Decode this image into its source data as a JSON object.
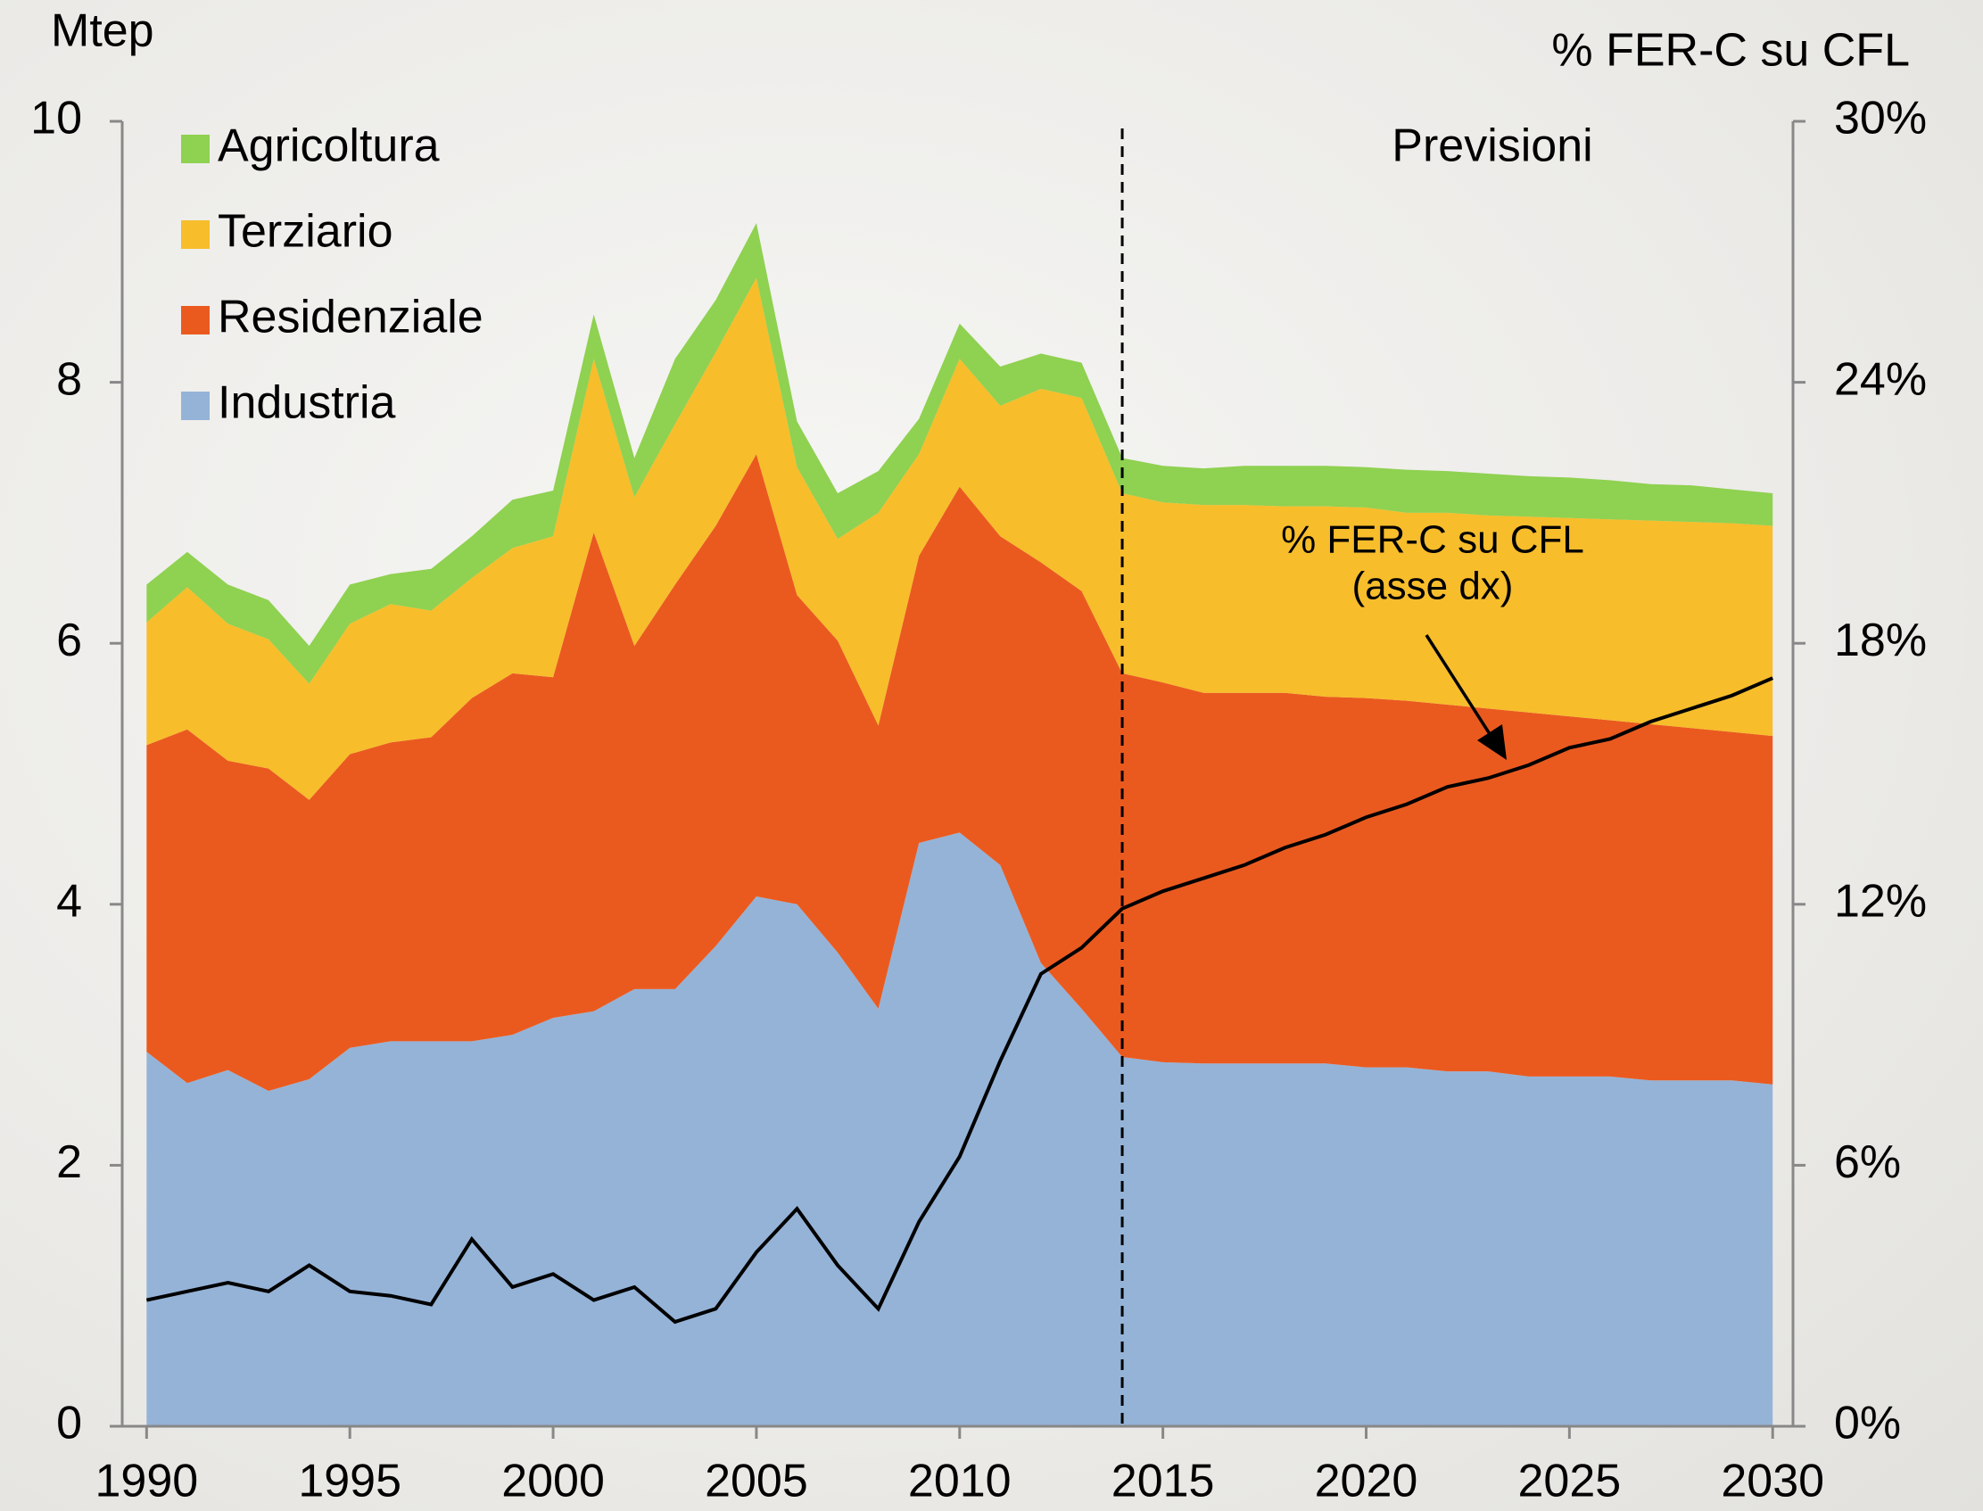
{
  "chart_data": {
    "type": "area",
    "y_label": "Mtep",
    "y2_label": "% FER-C su CFL",
    "annotations": [
      "Previsioni",
      "(asse dx)"
    ],
    "forecast_line_x": 2014,
    "x": [
      1990,
      1991,
      1992,
      1993,
      1994,
      1995,
      1996,
      1997,
      1998,
      1999,
      2000,
      2001,
      2002,
      2003,
      2004,
      2005,
      2006,
      2007,
      2008,
      2009,
      2010,
      2011,
      2012,
      2013,
      2014,
      2015,
      2016,
      2017,
      2018,
      2019,
      2020,
      2021,
      2022,
      2023,
      2024,
      2025,
      2026,
      2027,
      2028,
      2029,
      2030
    ],
    "series": [
      {
        "name": "Industria",
        "color": "#95b3d7",
        "values": [
          2.87,
          2.63,
          2.73,
          2.57,
          2.66,
          2.9,
          2.95,
          2.95,
          2.95,
          3.0,
          3.13,
          3.18,
          3.35,
          3.35,
          3.68,
          4.06,
          4.0,
          3.63,
          3.2,
          4.47,
          4.55,
          4.3,
          3.55,
          3.2,
          2.83,
          2.79,
          2.78,
          2.78,
          2.78,
          2.78,
          2.75,
          2.75,
          2.72,
          2.72,
          2.68,
          2.68,
          2.68,
          2.65,
          2.65,
          2.65,
          2.62
        ]
      },
      {
        "name": "Residenziale",
        "color": "#ea5a1f",
        "values": [
          2.35,
          2.71,
          2.37,
          2.47,
          2.14,
          2.25,
          2.29,
          2.33,
          2.63,
          2.77,
          2.61,
          3.67,
          2.63,
          3.1,
          3.22,
          3.39,
          2.37,
          2.39,
          2.17,
          2.2,
          2.65,
          2.52,
          3.07,
          3.2,
          2.94,
          2.91,
          2.84,
          2.84,
          2.84,
          2.81,
          2.83,
          2.81,
          2.81,
          2.78,
          2.79,
          2.76,
          2.73,
          2.73,
          2.7,
          2.67,
          2.67
        ]
      },
      {
        "name": "Terziario",
        "color": "#f7bd2b",
        "values": [
          0.94,
          1.09,
          1.05,
          0.99,
          0.89,
          1.0,
          1.06,
          0.97,
          0.92,
          0.96,
          1.08,
          1.33,
          1.14,
          1.23,
          1.33,
          1.35,
          0.98,
          0.78,
          1.63,
          0.78,
          0.98,
          1.0,
          1.33,
          1.48,
          1.38,
          1.38,
          1.44,
          1.44,
          1.43,
          1.46,
          1.46,
          1.44,
          1.47,
          1.48,
          1.5,
          1.52,
          1.54,
          1.56,
          1.58,
          1.6,
          1.61
        ]
      },
      {
        "name": "Agricoltura",
        "color": "#8fd150",
        "values": [
          0.29,
          0.27,
          0.3,
          0.3,
          0.29,
          0.3,
          0.23,
          0.32,
          0.32,
          0.37,
          0.35,
          0.34,
          0.3,
          0.5,
          0.4,
          0.42,
          0.35,
          0.35,
          0.32,
          0.27,
          0.27,
          0.3,
          0.27,
          0.27,
          0.27,
          0.28,
          0.28,
          0.3,
          0.31,
          0.31,
          0.31,
          0.33,
          0.32,
          0.32,
          0.31,
          0.31,
          0.3,
          0.28,
          0.28,
          0.26,
          0.25
        ]
      },
      {
        "name": "% FER-C su CFL",
        "color": "#000000",
        "axis": "y2",
        "values": [
          2.9,
          3.1,
          3.3,
          3.1,
          3.7,
          3.1,
          3.0,
          2.8,
          4.3,
          3.2,
          3.5,
          2.9,
          3.2,
          2.4,
          2.7,
          4.0,
          5.0,
          3.7,
          2.7,
          4.7,
          6.2,
          8.4,
          10.4,
          11.0,
          11.9,
          12.3,
          12.6,
          12.9,
          13.3,
          13.6,
          14.0,
          14.3,
          14.7,
          14.9,
          15.2,
          15.6,
          15.8,
          16.2,
          16.5,
          16.8,
          17.2
        ]
      }
    ],
    "xlim": [
      1989.4,
      2030.5
    ],
    "xticks": [
      1990,
      1995,
      2000,
      2005,
      2010,
      2015,
      2020,
      2025,
      2030
    ],
    "ylim": [
      0,
      10
    ],
    "yticks": [
      0,
      2,
      4,
      6,
      8,
      10
    ],
    "y2lim": [
      0,
      30
    ],
    "y2ticks": [
      {
        "value": 0,
        "label": "0%"
      },
      {
        "value": 6,
        "label": "6%"
      },
      {
        "value": 12,
        "label": "12%"
      },
      {
        "value": 18,
        "label": "18%"
      },
      {
        "value": 24,
        "label": "24%"
      },
      {
        "value": 30,
        "label": "30%"
      }
    ],
    "legend": "top-left"
  }
}
